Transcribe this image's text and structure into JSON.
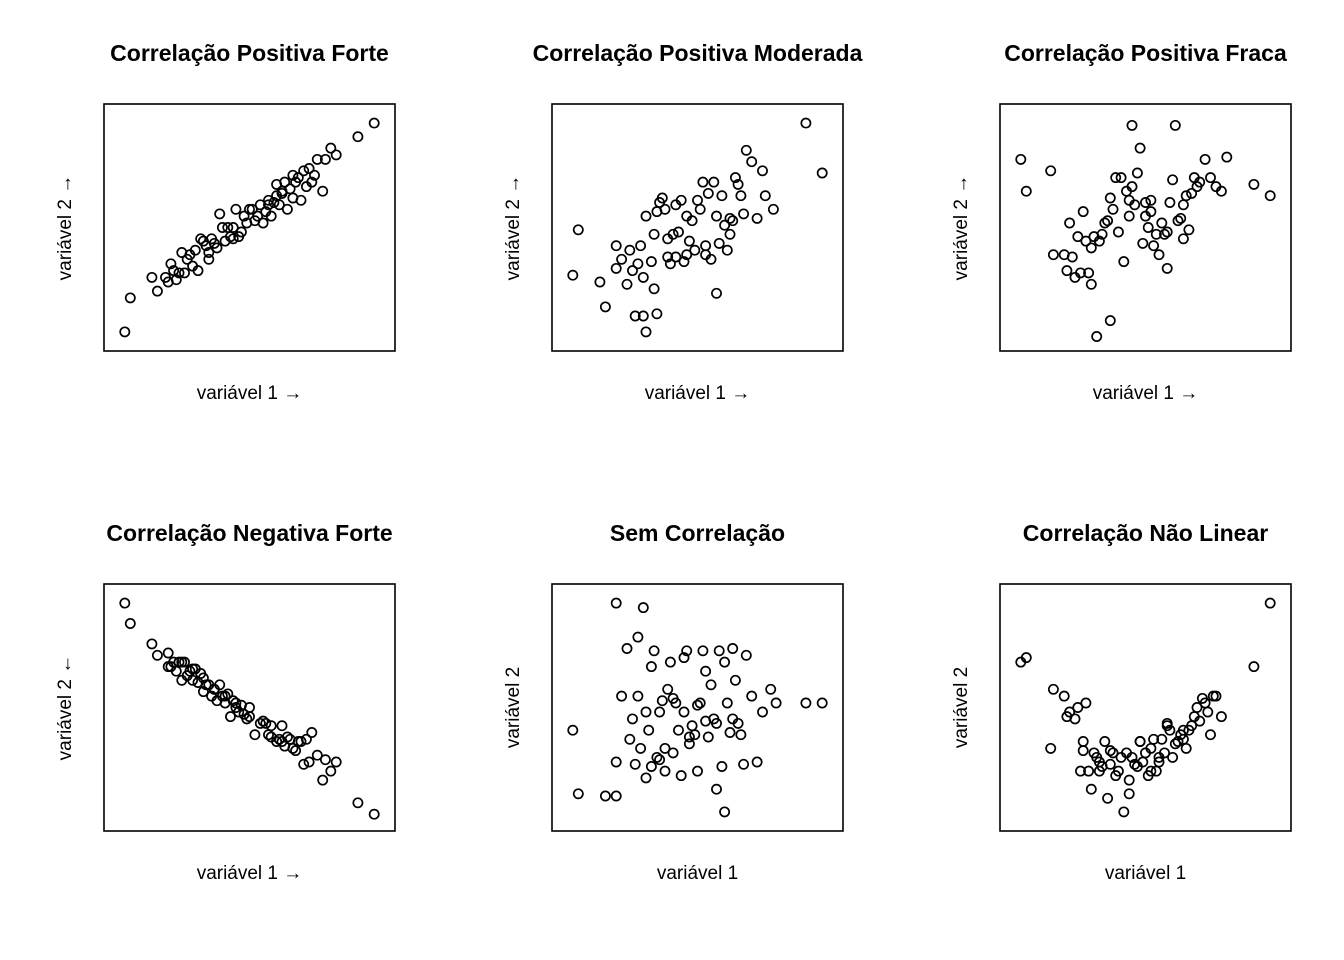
{
  "chart_data": [
    {
      "type": "scatter",
      "title": "Correlação Positiva Forte",
      "xlabel": "variável 1 →",
      "ylabel": "variável 2 →",
      "xlim": [
        0,
        1
      ],
      "ylim": [
        0,
        1
      ],
      "grid": false,
      "x": [
        0.04,
        0.06,
        0.14,
        0.16,
        0.2,
        0.21,
        0.24,
        0.25,
        0.23,
        0.28,
        0.3,
        0.31,
        0.27,
        0.33,
        0.35,
        0.36,
        0.38,
        0.4,
        0.41,
        0.39,
        0.43,
        0.44,
        0.46,
        0.45,
        0.48,
        0.5,
        0.52,
        0.47,
        0.54,
        0.55,
        0.57,
        0.58,
        0.6,
        0.61,
        0.62,
        0.63,
        0.64,
        0.65,
        0.66,
        0.68,
        0.69,
        0.7,
        0.72,
        0.73,
        0.75,
        0.77,
        0.78,
        0.8,
        0.82,
        0.9,
        0.96,
        0.35,
        0.42,
        0.53,
        0.59,
        0.67,
        0.71,
        0.26,
        0.32,
        0.49,
        0.56,
        0.74,
        0.44,
        0.37,
        0.62,
        0.29,
        0.51,
        0.6,
        0.19,
        0.22,
        0.34,
        0.57,
        0.66
      ],
      "y": [
        0.04,
        0.19,
        0.28,
        0.22,
        0.26,
        0.34,
        0.3,
        0.39,
        0.27,
        0.38,
        0.4,
        0.31,
        0.36,
        0.44,
        0.36,
        0.45,
        0.41,
        0.5,
        0.44,
        0.56,
        0.46,
        0.5,
        0.46,
        0.58,
        0.55,
        0.58,
        0.53,
        0.48,
        0.6,
        0.52,
        0.62,
        0.55,
        0.64,
        0.6,
        0.66,
        0.7,
        0.58,
        0.67,
        0.73,
        0.72,
        0.62,
        0.75,
        0.76,
        0.7,
        0.8,
        0.66,
        0.8,
        0.85,
        0.82,
        0.9,
        0.96,
        0.39,
        0.5,
        0.55,
        0.61,
        0.7,
        0.68,
        0.3,
        0.45,
        0.52,
        0.57,
        0.73,
        0.45,
        0.43,
        0.65,
        0.33,
        0.58,
        0.69,
        0.28,
        0.31,
        0.42,
        0.6,
        0.63
      ]
    },
    {
      "type": "scatter",
      "title": "Correlação Positiva Moderada",
      "xlabel": "variável 1 →",
      "ylabel": "variável 2 →",
      "xlim": [
        0,
        1
      ],
      "ylim": [
        0,
        1
      ],
      "grid": false,
      "x": [
        0.04,
        0.06,
        0.14,
        0.16,
        0.2,
        0.2,
        0.22,
        0.24,
        0.25,
        0.26,
        0.27,
        0.28,
        0.29,
        0.3,
        0.3,
        0.31,
        0.33,
        0.34,
        0.34,
        0.35,
        0.36,
        0.37,
        0.38,
        0.39,
        0.4,
        0.41,
        0.42,
        0.43,
        0.44,
        0.45,
        0.46,
        0.47,
        0.48,
        0.49,
        0.5,
        0.51,
        0.52,
        0.53,
        0.54,
        0.55,
        0.56,
        0.57,
        0.58,
        0.59,
        0.6,
        0.61,
        0.62,
        0.63,
        0.64,
        0.65,
        0.66,
        0.67,
        0.68,
        0.7,
        0.72,
        0.74,
        0.75,
        0.78,
        0.9,
        0.96,
        0.35,
        0.42,
        0.57,
        0.31,
        0.46,
        0.62,
        0.39,
        0.53
      ],
      "y": [
        0.29,
        0.49,
        0.26,
        0.15,
        0.42,
        0.32,
        0.36,
        0.25,
        0.4,
        0.31,
        0.11,
        0.34,
        0.42,
        0.28,
        0.11,
        0.04,
        0.35,
        0.23,
        0.47,
        0.12,
        0.61,
        0.63,
        0.58,
        0.37,
        0.34,
        0.47,
        0.6,
        0.48,
        0.62,
        0.35,
        0.55,
        0.44,
        0.53,
        0.4,
        0.62,
        0.58,
        0.7,
        0.42,
        0.65,
        0.36,
        0.7,
        0.55,
        0.43,
        0.64,
        0.51,
        0.4,
        0.47,
        0.53,
        0.72,
        0.69,
        0.64,
        0.56,
        0.84,
        0.79,
        0.54,
        0.75,
        0.64,
        0.58,
        0.96,
        0.74,
        0.57,
        0.37,
        0.21,
        0.55,
        0.38,
        0.54,
        0.45,
        0.38
      ]
    },
    {
      "type": "scatter",
      "title": "Correlação Positiva Fraca",
      "xlabel": "variável 1 →",
      "ylabel": "variável 2 →",
      "xlim": [
        0,
        1
      ],
      "ylim": [
        0,
        1
      ],
      "grid": false,
      "x": [
        0.04,
        0.06,
        0.15,
        0.16,
        0.2,
        0.21,
        0.22,
        0.24,
        0.25,
        0.26,
        0.27,
        0.28,
        0.29,
        0.3,
        0.31,
        0.32,
        0.33,
        0.34,
        0.35,
        0.36,
        0.37,
        0.38,
        0.39,
        0.4,
        0.41,
        0.42,
        0.43,
        0.44,
        0.45,
        0.46,
        0.47,
        0.48,
        0.49,
        0.5,
        0.51,
        0.52,
        0.53,
        0.54,
        0.55,
        0.56,
        0.57,
        0.58,
        0.59,
        0.6,
        0.61,
        0.62,
        0.63,
        0.64,
        0.65,
        0.66,
        0.67,
        0.68,
        0.69,
        0.7,
        0.72,
        0.74,
        0.76,
        0.78,
        0.8,
        0.9,
        0.96,
        0.23,
        0.37,
        0.45,
        0.52,
        0.64,
        0.3,
        0.5,
        0.58,
        0.44
      ],
      "y": [
        0.8,
        0.66,
        0.75,
        0.38,
        0.38,
        0.31,
        0.52,
        0.28,
        0.46,
        0.3,
        0.57,
        0.44,
        0.3,
        0.25,
        0.46,
        0.02,
        0.44,
        0.47,
        0.52,
        0.53,
        0.09,
        0.58,
        0.72,
        0.48,
        0.72,
        0.35,
        0.66,
        0.55,
        0.95,
        0.6,
        0.74,
        0.85,
        0.43,
        0.55,
        0.5,
        0.62,
        0.42,
        0.47,
        0.38,
        0.52,
        0.47,
        0.32,
        0.61,
        0.71,
        0.95,
        0.53,
        0.54,
        0.6,
        0.64,
        0.49,
        0.65,
        0.72,
        0.68,
        0.7,
        0.8,
        0.72,
        0.68,
        0.66,
        0.81,
        0.69,
        0.64,
        0.37,
        0.63,
        0.68,
        0.57,
        0.45,
        0.41,
        0.61,
        0.48,
        0.62
      ]
    },
    {
      "type": "scatter",
      "title": "Correlação Negativa Forte",
      "xlabel": "variável 1 →",
      "ylabel": "variável 2 ←",
      "xlim": [
        0,
        1
      ],
      "ylim": [
        0,
        1
      ],
      "grid": false,
      "x": [
        0.04,
        0.06,
        0.14,
        0.16,
        0.2,
        0.2,
        0.21,
        0.22,
        0.23,
        0.24,
        0.25,
        0.26,
        0.27,
        0.28,
        0.29,
        0.3,
        0.31,
        0.32,
        0.33,
        0.34,
        0.35,
        0.36,
        0.37,
        0.38,
        0.39,
        0.4,
        0.41,
        0.42,
        0.43,
        0.44,
        0.45,
        0.46,
        0.47,
        0.48,
        0.49,
        0.5,
        0.52,
        0.54,
        0.55,
        0.56,
        0.57,
        0.58,
        0.6,
        0.61,
        0.62,
        0.63,
        0.64,
        0.65,
        0.66,
        0.67,
        0.68,
        0.69,
        0.7,
        0.71,
        0.72,
        0.73,
        0.75,
        0.77,
        0.78,
        0.8,
        0.82,
        0.9,
        0.96,
        0.25,
        0.33,
        0.37,
        0.45,
        0.5,
        0.58,
        0.62,
        0.29,
        0.41
      ],
      "y": [
        0.96,
        0.87,
        0.78,
        0.73,
        0.74,
        0.68,
        0.68,
        0.7,
        0.66,
        0.7,
        0.62,
        0.7,
        0.64,
        0.66,
        0.62,
        0.67,
        0.61,
        0.65,
        0.57,
        0.6,
        0.6,
        0.55,
        0.58,
        0.53,
        0.6,
        0.55,
        0.52,
        0.56,
        0.46,
        0.53,
        0.5,
        0.48,
        0.51,
        0.47,
        0.45,
        0.46,
        0.38,
        0.43,
        0.44,
        0.43,
        0.38,
        0.42,
        0.35,
        0.36,
        0.42,
        0.33,
        0.37,
        0.36,
        0.32,
        0.31,
        0.35,
        0.35,
        0.25,
        0.36,
        0.26,
        0.39,
        0.29,
        0.18,
        0.27,
        0.22,
        0.26,
        0.08,
        0.03,
        0.7,
        0.63,
        0.58,
        0.52,
        0.5,
        0.37,
        0.35,
        0.67,
        0.55
      ]
    },
    {
      "type": "scatter",
      "title": "Sem Correlação",
      "xlabel": "variável 1",
      "ylabel": "variável 2",
      "xlim": [
        0,
        1
      ],
      "ylim": [
        0,
        1
      ],
      "grid": false,
      "x": [
        0.04,
        0.06,
        0.16,
        0.2,
        0.2,
        0.2,
        0.22,
        0.24,
        0.25,
        0.26,
        0.27,
        0.28,
        0.29,
        0.3,
        0.31,
        0.32,
        0.33,
        0.34,
        0.35,
        0.36,
        0.37,
        0.38,
        0.39,
        0.4,
        0.41,
        0.42,
        0.43,
        0.44,
        0.45,
        0.46,
        0.47,
        0.48,
        0.49,
        0.5,
        0.51,
        0.52,
        0.53,
        0.54,
        0.55,
        0.56,
        0.57,
        0.58,
        0.59,
        0.6,
        0.61,
        0.62,
        0.63,
        0.64,
        0.65,
        0.66,
        0.67,
        0.68,
        0.7,
        0.72,
        0.74,
        0.77,
        0.79,
        0.9,
        0.96,
        0.28,
        0.31,
        0.36,
        0.45,
        0.5,
        0.57,
        0.63,
        0.33,
        0.41,
        0.53,
        0.6,
        0.38,
        0.47
      ],
      "y": [
        0.4,
        0.12,
        0.11,
        0.11,
        0.96,
        0.26,
        0.55,
        0.76,
        0.36,
        0.45,
        0.25,
        0.55,
        0.32,
        0.94,
        0.48,
        0.4,
        0.24,
        0.75,
        0.28,
        0.48,
        0.53,
        0.32,
        0.58,
        0.7,
        0.3,
        0.52,
        0.4,
        0.2,
        0.48,
        0.75,
        0.34,
        0.42,
        0.38,
        0.22,
        0.52,
        0.75,
        0.44,
        0.37,
        0.6,
        0.45,
        0.43,
        0.75,
        0.24,
        0.7,
        0.52,
        0.39,
        0.45,
        0.62,
        0.43,
        0.38,
        0.25,
        0.73,
        0.55,
        0.26,
        0.48,
        0.58,
        0.52,
        0.52,
        0.52,
        0.81,
        0.19,
        0.27,
        0.72,
        0.51,
        0.14,
        0.76,
        0.68,
        0.54,
        0.66,
        0.04,
        0.22,
        0.37
      ]
    },
    {
      "type": "scatter",
      "title": "Correlação Não Linear",
      "xlabel": "variável 1",
      "ylabel": "variável 2",
      "xlim": [
        0,
        1
      ],
      "ylim": [
        0,
        1
      ],
      "grid": false,
      "x": [
        0.04,
        0.06,
        0.15,
        0.16,
        0.2,
        0.21,
        0.22,
        0.24,
        0.25,
        0.26,
        0.27,
        0.28,
        0.29,
        0.3,
        0.31,
        0.32,
        0.33,
        0.34,
        0.35,
        0.36,
        0.37,
        0.38,
        0.39,
        0.4,
        0.41,
        0.42,
        0.43,
        0.44,
        0.45,
        0.46,
        0.47,
        0.48,
        0.49,
        0.5,
        0.51,
        0.52,
        0.53,
        0.54,
        0.55,
        0.56,
        0.57,
        0.58,
        0.59,
        0.6,
        0.61,
        0.62,
        0.63,
        0.64,
        0.65,
        0.66,
        0.67,
        0.68,
        0.69,
        0.7,
        0.71,
        0.72,
        0.73,
        0.74,
        0.75,
        0.76,
        0.78,
        0.9,
        0.96,
        0.27,
        0.33,
        0.44,
        0.48,
        0.52,
        0.58,
        0.64,
        0.37,
        0.55
      ],
      "y": [
        0.7,
        0.72,
        0.32,
        0.58,
        0.55,
        0.46,
        0.48,
        0.45,
        0.5,
        0.22,
        0.35,
        0.52,
        0.22,
        0.14,
        0.3,
        0.28,
        0.26,
        0.24,
        0.35,
        0.1,
        0.31,
        0.3,
        0.2,
        0.22,
        0.28,
        0.04,
        0.3,
        0.12,
        0.28,
        0.25,
        0.24,
        0.35,
        0.26,
        0.3,
        0.2,
        0.32,
        0.36,
        0.22,
        0.26,
        0.36,
        0.3,
        0.43,
        0.4,
        0.28,
        0.34,
        0.35,
        0.38,
        0.4,
        0.32,
        0.4,
        0.42,
        0.46,
        0.5,
        0.44,
        0.54,
        0.52,
        0.48,
        0.38,
        0.55,
        0.55,
        0.46,
        0.68,
        0.96,
        0.31,
        0.22,
        0.18,
        0.35,
        0.22,
        0.42,
        0.36,
        0.25,
        0.28
      ]
    }
  ]
}
